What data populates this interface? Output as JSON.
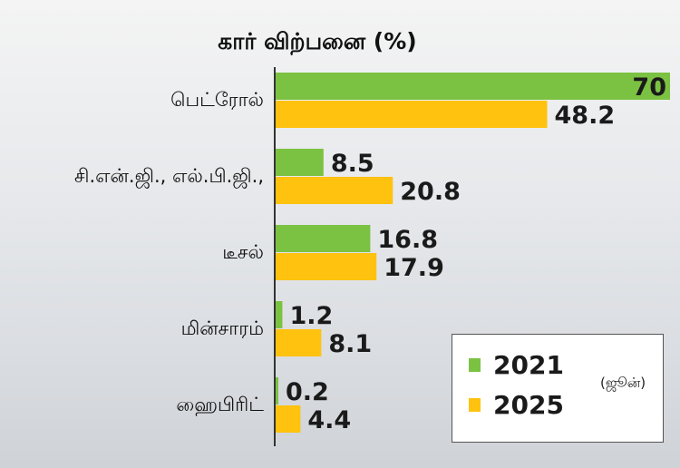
{
  "chart_data": {
    "type": "bar",
    "orientation": "horizontal",
    "title": "கார் விற்பனை (%)",
    "categories": [
      "பெட்ரோல்",
      "சி.என்.ஜி., எல்.பி.ஜி.,",
      "டீசல்",
      "மின்சாரம்",
      "ஹைபிரிட்"
    ],
    "series": [
      {
        "name": "2021",
        "values": [
          70,
          8.5,
          16.8,
          1.2,
          0.2
        ],
        "labels": [
          "70",
          "8.5",
          "16.8",
          "1.2",
          "0.2"
        ],
        "color": "#7cc242"
      },
      {
        "name": "2025",
        "values": [
          48.2,
          20.8,
          17.9,
          8.1,
          4.4
        ],
        "labels": [
          "48.2",
          "20.8",
          "17.9",
          "8.1",
          "4.4"
        ],
        "color": "#ffc20e"
      }
    ],
    "xlim": [
      0,
      70
    ],
    "grid": false,
    "legend_position": "bottom-right",
    "legend_note": "(ஜூன்)"
  }
}
